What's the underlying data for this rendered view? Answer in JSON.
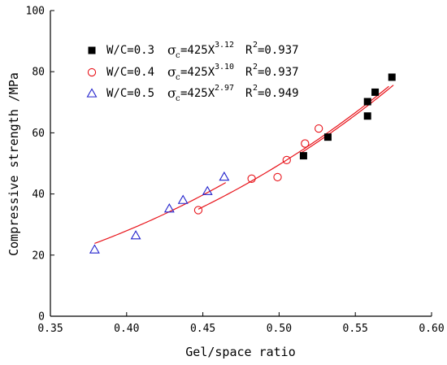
{
  "chart_data": {
    "type": "scatter",
    "title": "",
    "xlabel": "Gel/space ratio",
    "ylabel": "Compressive strength /MPa",
    "xlim": [
      0.35,
      0.6
    ],
    "ylim": [
      0,
      100
    ],
    "xticks": [
      "0.35",
      "0.40",
      "0.45",
      "0.50",
      "0.55",
      "0.60"
    ],
    "yticks": [
      "0",
      "20",
      "40",
      "60",
      "80",
      "100"
    ],
    "grid": false,
    "legend_position": "top-left",
    "fit_color": "#e8141b",
    "series": [
      {
        "label": "W/C=0.3",
        "sigma": "σ",
        "sigma_sub": "c",
        "eq_base": "=425X",
        "eq_exp": "3.12",
        "r2_base": "R",
        "r2_exp": "2",
        "r2_val": "=0.937",
        "marker": "filled-square",
        "color": "#000000",
        "fit": {
          "a": 425,
          "b": 3.12,
          "x_range": [
            0.515,
            0.575
          ]
        },
        "points": [
          {
            "x": 0.516,
            "y": 52.5
          },
          {
            "x": 0.532,
            "y": 58.6
          },
          {
            "x": 0.558,
            "y": 65.5
          },
          {
            "x": 0.558,
            "y": 70.2
          },
          {
            "x": 0.563,
            "y": 73.3
          },
          {
            "x": 0.574,
            "y": 78.2
          }
        ]
      },
      {
        "label": "W/C=0.4",
        "sigma": "σ",
        "sigma_sub": "c",
        "eq_base": "=425X",
        "eq_exp": "3.10",
        "r2_base": "R",
        "r2_exp": "2",
        "r2_val": "=0.937",
        "marker": "open-circle",
        "color": "#e8141b",
        "fit": {
          "a": 425,
          "b": 3.1,
          "x_range": [
            0.447,
            0.572
          ]
        },
        "points": [
          {
            "x": 0.447,
            "y": 34.7
          },
          {
            "x": 0.482,
            "y": 45.0
          },
          {
            "x": 0.499,
            "y": 45.5
          },
          {
            "x": 0.505,
            "y": 51.1
          },
          {
            "x": 0.517,
            "y": 56.5
          },
          {
            "x": 0.526,
            "y": 61.4
          }
        ]
      },
      {
        "label": "W/C=0.5",
        "sigma": "σ",
        "sigma_sub": "c",
        "eq_base": "=425X",
        "eq_exp": "2.97",
        "r2_base": "R",
        "r2_exp": "2",
        "r2_val": "=0.949",
        "marker": "open-triangle",
        "color": "#2222cc",
        "fit": {
          "a": 425,
          "b": 2.97,
          "x_range": [
            0.379,
            0.465
          ]
        },
        "points": [
          {
            "x": 0.379,
            "y": 21.8
          },
          {
            "x": 0.406,
            "y": 26.4
          },
          {
            "x": 0.428,
            "y": 35.2
          },
          {
            "x": 0.437,
            "y": 38.0
          },
          {
            "x": 0.453,
            "y": 40.9
          },
          {
            "x": 0.464,
            "y": 45.6
          }
        ]
      }
    ]
  }
}
